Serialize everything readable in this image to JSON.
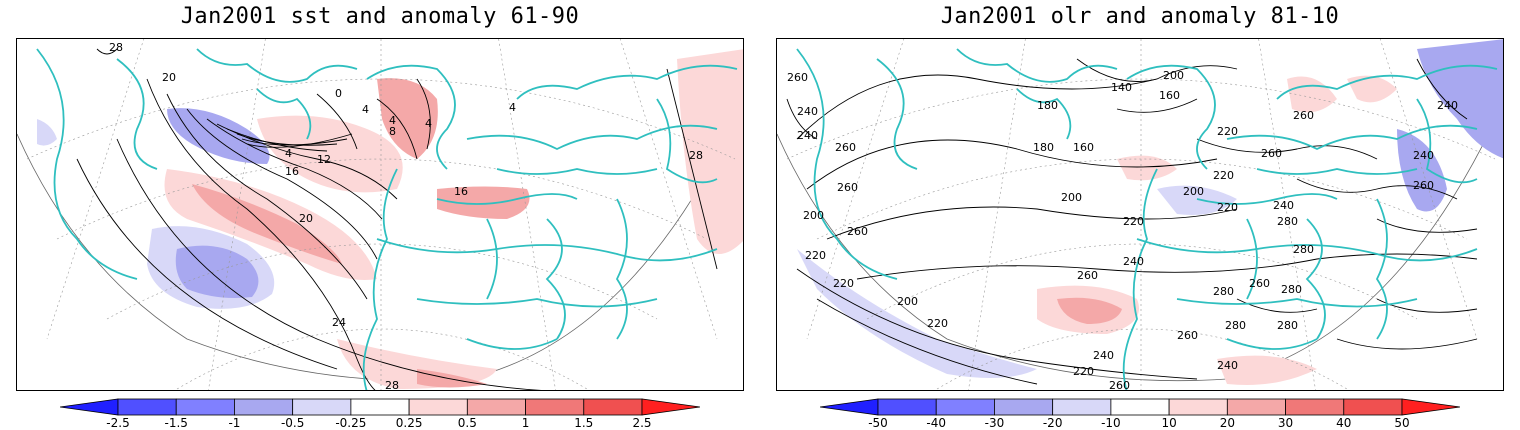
{
  "panels": [
    {
      "title": "Jan2001 sst and anomaly 61-90",
      "contour_labels": [
        "28",
        "20",
        "0",
        "4",
        "4",
        "8",
        "4",
        "4",
        "12",
        "16",
        "16",
        "20",
        "24",
        "28",
        "28",
        "4"
      ],
      "colorbar": {
        "labels": [
          "-2.5",
          "-1.5",
          "-1",
          "-0.5",
          "-0.25",
          "0.25",
          "0.5",
          "1",
          "1.5",
          "2.5"
        ],
        "colors": [
          "#2020ff",
          "#5050ff",
          "#8080ff",
          "#a8a8f0",
          "#d8d8f8",
          "#ffffff",
          "#fcd8d8",
          "#f4a8a8",
          "#f07878",
          "#f05050",
          "#ff2020"
        ]
      }
    },
    {
      "title": "Jan2001 olr and anomaly 81-10",
      "contour_labels": [
        "260",
        "240",
        "260",
        "240",
        "180",
        "140",
        "160",
        "180",
        "160",
        "200",
        "220",
        "240",
        "260",
        "280",
        "200",
        "220",
        "260",
        "280",
        "220",
        "200",
        "260",
        "280",
        "220",
        "240",
        "260",
        "280",
        "220",
        "200",
        "260",
        "240",
        "280",
        "260",
        "260",
        "220",
        "240",
        "200",
        "220",
        "240",
        "260",
        "220",
        "260",
        "280",
        "240"
      ],
      "colorbar": {
        "labels": [
          "-50",
          "-40",
          "-30",
          "-20",
          "-10",
          "10",
          "20",
          "30",
          "40",
          "50"
        ],
        "colors": [
          "#2020ff",
          "#5050ff",
          "#8080ff",
          "#a8a8f0",
          "#d8d8f8",
          "#ffffff",
          "#fcd8d8",
          "#f4a8a8",
          "#f07878",
          "#f05050",
          "#ff2020"
        ]
      }
    }
  ]
}
